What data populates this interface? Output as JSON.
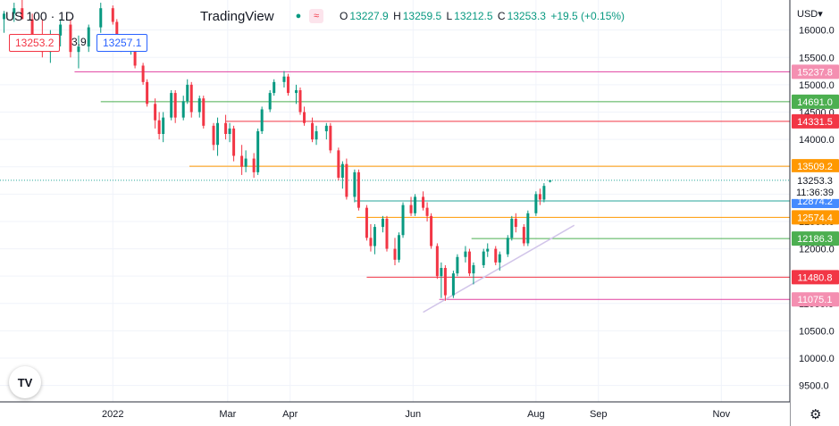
{
  "header": {
    "symbol": "US 100 · 1D",
    "brand": "TradingView",
    "open_label": "O",
    "open": "13227.9",
    "high_label": "H",
    "high": "13259.5",
    "low_label": "L",
    "low": "13212.5",
    "close_label": "C",
    "close": "13253.3",
    "change": "+19.5 (+0.15%)"
  },
  "price_boxes": {
    "bid": "13253.2",
    "spread": "3.9",
    "ask": "13257.1"
  },
  "currency": "USD",
  "colors": {
    "up": "#089981",
    "down": "#f23645",
    "axis_bg": "#ffffff"
  },
  "chart_data": {
    "type": "candlestick",
    "title": "US 100 · 1D",
    "ylim": [
      9200,
      16550
    ],
    "y_ticks": [
      16000,
      15500,
      15000,
      14500,
      14000,
      13500,
      13000,
      12500,
      12000,
      11500,
      11000,
      10500,
      10000,
      9500
    ],
    "y_tick_labels": [
      "16000.0",
      "15500.0",
      "15000.0",
      "14500.0",
      "14000.0",
      "13500.0",
      "13000.0",
      "12500.0",
      "12000.0",
      "11500.0",
      "11000.0",
      "10500.0",
      "10000.0",
      "9500.0"
    ],
    "x_ticks": [
      {
        "date": "2022-01-03",
        "label": "2022"
      },
      {
        "date": "2022-03-01",
        "label": "Mar"
      },
      {
        "date": "2022-04-01",
        "label": "Apr"
      },
      {
        "date": "2022-06-01",
        "label": "Jun"
      },
      {
        "date": "2022-08-01",
        "label": "Aug"
      },
      {
        "date": "2022-09-01",
        "label": "Sep"
      },
      {
        "date": "2022-11-01",
        "label": "Nov"
      }
    ],
    "x_range": [
      "2021-11-08",
      "2022-12-05"
    ],
    "levels": [
      {
        "value": 15237.8,
        "label": "15237.8",
        "color": "#e040a0",
        "start": "2021-12-15",
        "badge": "#f48fb1"
      },
      {
        "value": 14691.0,
        "label": "14691.0",
        "color": "#4caf50",
        "start": "2021-12-28",
        "badge": "#4caf50"
      },
      {
        "value": 14331.5,
        "label": "14331.5",
        "color": "#f23645",
        "start": "2022-02-28",
        "badge": "#f23645"
      },
      {
        "value": 13509.2,
        "label": "13509.2",
        "color": "#ff9800",
        "start": "2022-02-10",
        "badge": "#ff9800"
      },
      {
        "value": 12874.2,
        "label": "12874.2",
        "color": "#26a69a",
        "start": "2022-05-03",
        "badge": "#448aff"
      },
      {
        "value": 12574.4,
        "label": "12574.4",
        "color": "#ff9800",
        "start": "2022-05-04",
        "badge": "#ff9800"
      },
      {
        "value": 12186.3,
        "label": "12186.3",
        "color": "#4caf50",
        "start": "2022-06-30",
        "badge": "#4caf50"
      },
      {
        "value": 11480.8,
        "label": "11480.8",
        "color": "#f23645",
        "start": "2022-05-09",
        "badge": "#f23645"
      },
      {
        "value": 11075.1,
        "label": "11075.1",
        "color": "#e040a0",
        "start": "2022-06-14",
        "badge": "#f48fb1"
      }
    ],
    "current": {
      "value": 13253.3,
      "label": "13253.3",
      "countdown": "11:36:39"
    },
    "trendline": {
      "start": [
        "2022-06-06",
        10840
      ],
      "end": [
        "2022-08-20",
        12430
      ]
    },
    "series": [
      [
        "2021-11-10",
        16200,
        16350,
        15950,
        16300
      ],
      [
        "2021-11-15",
        16300,
        16500,
        16150,
        16400
      ],
      [
        "2021-11-19",
        16400,
        16550,
        16250,
        16200
      ],
      [
        "2021-11-24",
        16200,
        16300,
        15800,
        15900
      ],
      [
        "2021-11-29",
        15900,
        16200,
        15500,
        15600
      ],
      [
        "2021-12-03",
        15600,
        16000,
        15400,
        15900
      ],
      [
        "2021-12-08",
        15900,
        16200,
        15700,
        16100
      ],
      [
        "2021-12-13",
        16100,
        16200,
        15500,
        15600
      ],
      [
        "2021-12-17",
        15600,
        15900,
        15300,
        15700
      ],
      [
        "2021-12-22",
        15700,
        16100,
        15600,
        16050
      ],
      [
        "2021-12-28",
        16050,
        16500,
        15950,
        16400
      ],
      [
        "2022-01-03",
        16400,
        16450,
        16100,
        16150
      ],
      [
        "2022-01-05",
        16150,
        16200,
        15750,
        15800
      ],
      [
        "2022-01-07",
        15800,
        15900,
        15600,
        15650
      ],
      [
        "2022-01-12",
        15650,
        15850,
        15550,
        15700
      ],
      [
        "2022-01-14",
        15700,
        15750,
        15300,
        15350
      ],
      [
        "2022-01-18",
        15350,
        15400,
        15000,
        15050
      ],
      [
        "2022-01-20",
        15050,
        15100,
        14600,
        14650
      ],
      [
        "2022-01-24",
        14650,
        14750,
        14200,
        14350
      ],
      [
        "2022-01-26",
        14350,
        14500,
        14000,
        14100
      ],
      [
        "2022-01-28",
        14100,
        14500,
        13950,
        14400
      ],
      [
        "2022-02-01",
        14400,
        14900,
        14350,
        14850
      ],
      [
        "2022-02-03",
        14850,
        14900,
        14300,
        14400
      ],
      [
        "2022-02-07",
        14400,
        14800,
        14350,
        14700
      ],
      [
        "2022-02-09",
        14700,
        15100,
        14650,
        15000
      ],
      [
        "2022-02-11",
        15000,
        15050,
        14400,
        14500
      ],
      [
        "2022-02-15",
        14500,
        14800,
        14400,
        14750
      ],
      [
        "2022-02-17",
        14750,
        14800,
        14200,
        14250
      ],
      [
        "2022-02-22",
        14250,
        14300,
        13800,
        13900
      ],
      [
        "2022-02-24",
        13900,
        14400,
        13700,
        14300
      ],
      [
        "2022-02-28",
        14300,
        14450,
        14000,
        14100
      ],
      [
        "2022-03-02",
        14100,
        14300,
        13950,
        14200
      ],
      [
        "2022-03-04",
        14200,
        14250,
        13600,
        13700
      ],
      [
        "2022-03-08",
        13700,
        13900,
        13350,
        13500
      ],
      [
        "2022-03-10",
        13500,
        13800,
        13400,
        13650
      ],
      [
        "2022-03-14",
        13650,
        13750,
        13300,
        13400
      ],
      [
        "2022-03-16",
        13400,
        14200,
        13350,
        14150
      ],
      [
        "2022-03-18",
        14150,
        14600,
        14100,
        14550
      ],
      [
        "2022-03-22",
        14550,
        14900,
        14500,
        14850
      ],
      [
        "2022-03-24",
        14850,
        15100,
        14800,
        15050
      ],
      [
        "2022-03-29",
        15050,
        15250,
        14950,
        15150
      ],
      [
        "2022-03-31",
        15150,
        15200,
        14800,
        14850
      ],
      [
        "2022-04-04",
        14850,
        15000,
        14650,
        14900
      ],
      [
        "2022-04-06",
        14900,
        14950,
        14450,
        14500
      ],
      [
        "2022-04-08",
        14500,
        14600,
        14250,
        14300
      ],
      [
        "2022-04-12",
        14300,
        14400,
        13950,
        14000
      ],
      [
        "2022-04-14",
        14000,
        14250,
        13900,
        14150
      ],
      [
        "2022-04-19",
        14150,
        14300,
        14000,
        14250
      ],
      [
        "2022-04-21",
        14250,
        14300,
        13750,
        13800
      ],
      [
        "2022-04-25",
        13800,
        13850,
        13250,
        13300
      ],
      [
        "2022-04-27",
        13300,
        13600,
        13100,
        13550
      ],
      [
        "2022-04-29",
        13550,
        13650,
        12900,
        12950
      ],
      [
        "2022-05-03",
        12950,
        13450,
        12850,
        13400
      ],
      [
        "2022-05-05",
        13400,
        13450,
        12700,
        12750
      ],
      [
        "2022-05-09",
        12750,
        12800,
        12150,
        12200
      ],
      [
        "2022-05-11",
        12200,
        12450,
        11950,
        12050
      ],
      [
        "2022-05-13",
        12050,
        12450,
        11900,
        12400
      ],
      [
        "2022-05-17",
        12400,
        12600,
        12300,
        12550
      ],
      [
        "2022-05-19",
        12550,
        12600,
        11950,
        12000
      ],
      [
        "2022-05-23",
        12000,
        12200,
        11700,
        11800
      ],
      [
        "2022-05-25",
        11800,
        12300,
        11750,
        12250
      ],
      [
        "2022-05-27",
        12250,
        12850,
        12200,
        12800
      ],
      [
        "2022-05-31",
        12800,
        12950,
        12600,
        12650
      ],
      [
        "2022-06-02",
        12650,
        13000,
        12600,
        12950
      ],
      [
        "2022-06-06",
        12950,
        13050,
        12700,
        12750
      ],
      [
        "2022-06-08",
        12750,
        12850,
        12500,
        12600
      ],
      [
        "2022-06-10",
        12600,
        12650,
        12000,
        12050
      ],
      [
        "2022-06-13",
        12050,
        12100,
        11450,
        11500
      ],
      [
        "2022-06-15",
        11500,
        11750,
        11100,
        11650
      ],
      [
        "2022-06-17",
        11650,
        11700,
        11050,
        11150
      ],
      [
        "2022-06-21",
        11150,
        11600,
        11100,
        11550
      ],
      [
        "2022-06-23",
        11550,
        11900,
        11500,
        11850
      ],
      [
        "2022-06-27",
        11850,
        12050,
        11750,
        11950
      ],
      [
        "2022-06-29",
        11950,
        12000,
        11500,
        11550
      ],
      [
        "2022-07-01",
        11550,
        11750,
        11350,
        11700
      ],
      [
        "2022-07-06",
        11700,
        12000,
        11650,
        11950
      ],
      [
        "2022-07-08",
        11950,
        12100,
        11850,
        12000
      ],
      [
        "2022-07-12",
        12000,
        12050,
        11700,
        11750
      ],
      [
        "2022-07-14",
        11750,
        11950,
        11600,
        11900
      ],
      [
        "2022-07-18",
        11900,
        12250,
        11850,
        12200
      ],
      [
        "2022-07-20",
        12200,
        12600,
        12150,
        12550
      ],
      [
        "2022-07-22",
        12550,
        12650,
        12300,
        12400
      ],
      [
        "2022-07-26",
        12400,
        12450,
        12050,
        12100
      ],
      [
        "2022-07-28",
        12100,
        12700,
        12050,
        12650
      ],
      [
        "2022-08-01",
        12650,
        13050,
        12600,
        13000
      ],
      [
        "2022-08-03",
        13000,
        13100,
        12800,
        12900
      ],
      [
        "2022-08-05",
        12900,
        13200,
        12850,
        13150
      ],
      [
        "2022-08-08",
        13227.9,
        13259.5,
        13212.5,
        13253.3
      ]
    ]
  }
}
